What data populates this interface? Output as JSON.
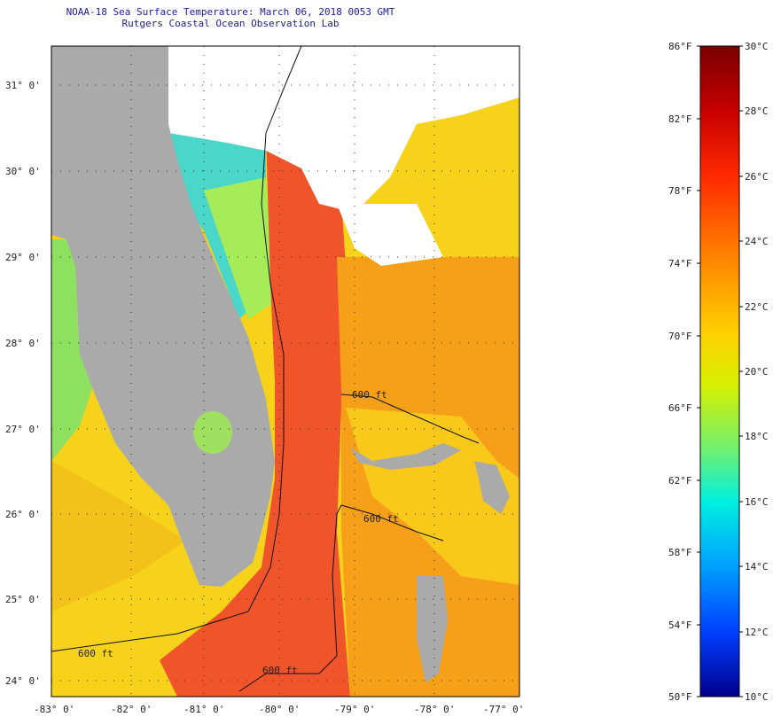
{
  "header": {
    "title": "NOAA-18 Sea Surface Temperature:  March 06, 2018 0053 GMT",
    "subtitle": "Rutgers Coastal Ocean Observation Lab"
  },
  "map": {
    "lat_labels": [
      "31° 0'",
      "30° 0'",
      "29° 0'",
      "28° 0'",
      "27° 0'",
      "26° 0'",
      "25° 0'",
      "24° 0'"
    ],
    "lon_labels": [
      "-83° 0'",
      "-82° 0'",
      "-81° 0'",
      "-80° 0'",
      "-79° 0'",
      "-78° 0'",
      "-77° 0'"
    ],
    "isobath_labels": [
      "600 ft",
      "600 ft",
      "600 ft",
      "600 ft"
    ],
    "colors": {
      "land": "#aaaaaa",
      "cloud": "#ffffff",
      "gulf_stream": "#f0542a",
      "shelf": "#f6d21a"
    }
  },
  "colorbar": {
    "fahrenheit": [
      "86°F",
      "82°F",
      "78°F",
      "74°F",
      "70°F",
      "66°F",
      "62°F",
      "58°F",
      "54°F",
      "50°F"
    ],
    "celsius": [
      "30°C",
      "28°C",
      "26°C",
      "24°C",
      "22°C",
      "20°C",
      "18°C",
      "16°C",
      "14°C",
      "12°C",
      "10°C"
    ],
    "gradient": [
      "#7a0000",
      "#c80000",
      "#ff2a00",
      "#ff8000",
      "#ffd000",
      "#d8f000",
      "#70f070",
      "#00f0e0",
      "#00a0ff",
      "#0040ff",
      "#00008c"
    ]
  }
}
